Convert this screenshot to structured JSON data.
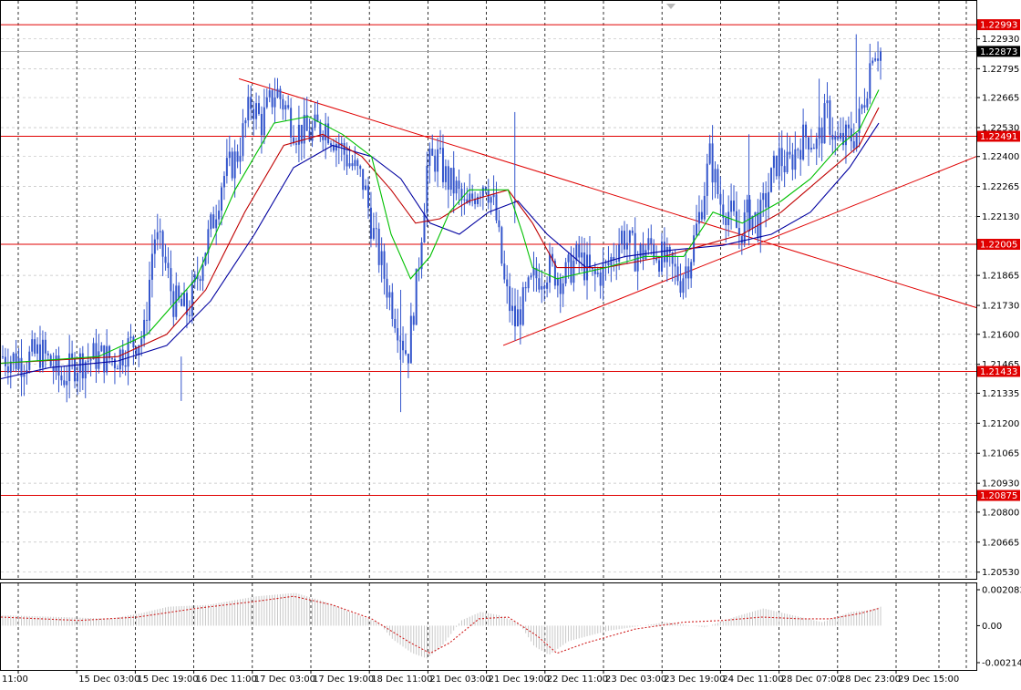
{
  "chart_data": [
    {
      "type": "candlestick",
      "symbol_hint": "",
      "title": "",
      "ylim": [
        1.205,
        1.231
      ],
      "y_ticks": [
        "1.22930",
        "1.22795",
        "1.22665",
        "1.22530",
        "1.22400",
        "1.22265",
        "1.22130",
        "1.21865",
        "1.21730",
        "1.21600",
        "1.21465",
        "1.21335",
        "1.21200",
        "1.21065",
        "1.20930",
        "1.20800",
        "1.20665",
        "1.20530"
      ],
      "x_ticks": [
        "11:00",
        "15 Dec 03:00",
        "15 Dec 19:00",
        "16 Dec 11:00",
        "17 Dec 03:00",
        "17 Dec 19:00",
        "18 Dec 11:00",
        "21 Dec 03:00",
        "21 Dec 19:00",
        "22 Dec 11:00",
        "23 Dec 03:00",
        "23 Dec 19:00",
        "24 Dec 11:00",
        "28 Dec 07:00",
        "28 Dec 23:00",
        "29 Dec 15:00"
      ],
      "horizontal_levels": [
        {
          "label": "1.22993",
          "value": 1.22993
        },
        {
          "label": "1.22491",
          "value": 1.22491
        },
        {
          "label": "1.22005",
          "value": 1.22005
        },
        {
          "label": "1.21433",
          "value": 1.21433
        },
        {
          "label": "1.20875",
          "value": 1.20875
        }
      ],
      "current_price": {
        "label": "1.22873",
        "value": 1.22873
      },
      "trendlines": [
        {
          "from": [
            0.244,
            1.2275
          ],
          "to": [
            1.0,
            1.2172
          ]
        },
        {
          "from": [
            0.515,
            1.2155
          ],
          "to": [
            1.0,
            1.224
          ]
        }
      ],
      "close_path": [
        [
          0.0,
          1.215
        ],
        [
          0.02,
          1.2148
        ],
        [
          0.04,
          1.2152
        ],
        [
          0.06,
          1.214
        ],
        [
          0.075,
          1.2147
        ],
        [
          0.095,
          1.215
        ],
        [
          0.115,
          1.2149
        ],
        [
          0.13,
          1.2155
        ],
        [
          0.145,
          1.216
        ],
        [
          0.155,
          1.2205
        ],
        [
          0.165,
          1.2195
        ],
        [
          0.175,
          1.2175
        ],
        [
          0.19,
          1.217
        ],
        [
          0.205,
          1.2195
        ],
        [
          0.215,
          1.221
        ],
        [
          0.225,
          1.223
        ],
        [
          0.24,
          1.224
        ],
        [
          0.255,
          1.2265
        ],
        [
          0.265,
          1.2255
        ],
        [
          0.28,
          1.227
        ],
        [
          0.29,
          1.2262
        ],
        [
          0.3,
          1.2252
        ],
        [
          0.315,
          1.225
        ],
        [
          0.33,
          1.2255
        ],
        [
          0.345,
          1.2245
        ],
        [
          0.355,
          1.2238
        ],
        [
          0.37,
          1.2228
        ],
        [
          0.38,
          1.2205
        ],
        [
          0.395,
          1.218
        ],
        [
          0.405,
          1.2165
        ],
        [
          0.415,
          1.215
        ],
        [
          0.425,
          1.2185
        ],
        [
          0.435,
          1.2235
        ],
        [
          0.445,
          1.224
        ],
        [
          0.455,
          1.223
        ],
        [
          0.465,
          1.2225
        ],
        [
          0.475,
          1.2215
        ],
        [
          0.485,
          1.2225
        ],
        [
          0.495,
          1.223
        ],
        [
          0.505,
          1.2215
        ],
        [
          0.515,
          1.218
        ],
        [
          0.525,
          1.2165
        ],
        [
          0.535,
          1.2175
        ],
        [
          0.545,
          1.2185
        ],
        [
          0.56,
          1.219
        ],
        [
          0.575,
          1.2185
        ],
        [
          0.59,
          1.2195
        ],
        [
          0.605,
          1.2185
        ],
        [
          0.62,
          1.219
        ],
        [
          0.635,
          1.2205
        ],
        [
          0.65,
          1.2195
        ],
        [
          0.665,
          1.22
        ],
        [
          0.68,
          1.2192
        ],
        [
          0.695,
          1.2185
        ],
        [
          0.705,
          1.2195
        ],
        [
          0.715,
          1.2215
        ],
        [
          0.725,
          1.224
        ],
        [
          0.735,
          1.222
        ],
        [
          0.745,
          1.2215
        ],
        [
          0.755,
          1.2205
        ],
        [
          0.765,
          1.2215
        ],
        [
          0.775,
          1.221
        ],
        [
          0.785,
          1.2225
        ],
        [
          0.795,
          1.224
        ],
        [
          0.805,
          1.2235
        ],
        [
          0.815,
          1.2245
        ],
        [
          0.825,
          1.225
        ],
        [
          0.835,
          1.2245
        ],
        [
          0.845,
          1.226
        ],
        [
          0.855,
          1.2245
        ],
        [
          0.865,
          1.2248
        ],
        [
          0.875,
          1.225
        ],
        [
          0.885,
          1.227
        ],
        [
          0.892,
          1.229
        ],
        [
          0.9,
          1.2287
        ]
      ],
      "ma_fast_path": [
        [
          0.0,
          1.2147
        ],
        [
          0.1,
          1.215
        ],
        [
          0.15,
          1.216
        ],
        [
          0.2,
          1.2185
        ],
        [
          0.24,
          1.2225
        ],
        [
          0.28,
          1.2255
        ],
        [
          0.315,
          1.2258
        ],
        [
          0.35,
          1.225
        ],
        [
          0.38,
          1.224
        ],
        [
          0.4,
          1.2205
        ],
        [
          0.42,
          1.2185
        ],
        [
          0.44,
          1.2195
        ],
        [
          0.46,
          1.2215
        ],
        [
          0.48,
          1.2225
        ],
        [
          0.5,
          1.2225
        ],
        [
          0.52,
          1.2225
        ],
        [
          0.535,
          1.2205
        ],
        [
          0.545,
          1.219
        ],
        [
          0.57,
          1.2185
        ],
        [
          0.62,
          1.219
        ],
        [
          0.66,
          1.2195
        ],
        [
          0.7,
          1.2195
        ],
        [
          0.73,
          1.2215
        ],
        [
          0.76,
          1.221
        ],
        [
          0.8,
          1.222
        ],
        [
          0.83,
          1.223
        ],
        [
          0.86,
          1.2245
        ],
        [
          0.88,
          1.2252
        ],
        [
          0.9,
          1.227
        ]
      ],
      "ma_mid_path": [
        [
          0.0,
          1.2147
        ],
        [
          0.12,
          1.215
        ],
        [
          0.17,
          1.216
        ],
        [
          0.21,
          1.218
        ],
        [
          0.25,
          1.2215
        ],
        [
          0.29,
          1.2245
        ],
        [
          0.33,
          1.225
        ],
        [
          0.37,
          1.224
        ],
        [
          0.4,
          1.2225
        ],
        [
          0.425,
          1.221
        ],
        [
          0.45,
          1.2212
        ],
        [
          0.48,
          1.222
        ],
        [
          0.52,
          1.2225
        ],
        [
          0.545,
          1.221
        ],
        [
          0.57,
          1.219
        ],
        [
          0.62,
          1.219
        ],
        [
          0.68,
          1.2195
        ],
        [
          0.72,
          1.22
        ],
        [
          0.76,
          1.2205
        ],
        [
          0.8,
          1.2215
        ],
        [
          0.84,
          1.223
        ],
        [
          0.88,
          1.2245
        ],
        [
          0.9,
          1.2262
        ]
      ],
      "ma_slow_path": [
        [
          0.0,
          1.214
        ],
        [
          0.05,
          1.2145
        ],
        [
          0.12,
          1.2148
        ],
        [
          0.17,
          1.2155
        ],
        [
          0.215,
          1.2175
        ],
        [
          0.26,
          1.2205
        ],
        [
          0.3,
          1.2235
        ],
        [
          0.34,
          1.2245
        ],
        [
          0.38,
          1.224
        ],
        [
          0.41,
          1.223
        ],
        [
          0.44,
          1.221
        ],
        [
          0.47,
          1.2205
        ],
        [
          0.5,
          1.2215
        ],
        [
          0.53,
          1.222
        ],
        [
          0.56,
          1.2205
        ],
        [
          0.6,
          1.219
        ],
        [
          0.64,
          1.2195
        ],
        [
          0.69,
          1.2198
        ],
        [
          0.74,
          1.22
        ],
        [
          0.79,
          1.2205
        ],
        [
          0.83,
          1.2215
        ],
        [
          0.87,
          1.2235
        ],
        [
          0.9,
          1.2255
        ]
      ],
      "colors": {
        "candles": "#3355cc",
        "ma_fast": "#00c000",
        "ma_mid": "#c00000",
        "ma_slow": "#0000a0",
        "levels": "#e00000",
        "trend": "#e00000",
        "grid": "#c0c0c0"
      }
    },
    {
      "type": "histogram",
      "title": "",
      "y_ticks": [
        "0.002083",
        "0.00",
        "-0.002144"
      ],
      "ylim": [
        -0.002144,
        0.002083
      ],
      "bars_path": [
        [
          0.0,
          0.0006
        ],
        [
          0.06,
          0.0005
        ],
        [
          0.11,
          0.0004
        ],
        [
          0.14,
          0.0007
        ],
        [
          0.17,
          0.0011
        ],
        [
          0.21,
          0.0012
        ],
        [
          0.26,
          0.0017
        ],
        [
          0.3,
          0.0019
        ],
        [
          0.33,
          0.0014
        ],
        [
          0.36,
          0.0007
        ],
        [
          0.385,
          0.0002
        ],
        [
          0.4,
          -0.0008
        ],
        [
          0.42,
          -0.0016
        ],
        [
          0.435,
          -0.0019
        ],
        [
          0.45,
          -0.0012
        ],
        [
          0.47,
          0.0003
        ],
        [
          0.49,
          0.0008
        ],
        [
          0.51,
          0.0006
        ],
        [
          0.53,
          0.0001
        ],
        [
          0.545,
          -0.0012
        ],
        [
          0.56,
          -0.0017
        ],
        [
          0.58,
          -0.0009
        ],
        [
          0.62,
          -0.0003
        ],
        [
          0.68,
          0.0002
        ],
        [
          0.72,
          -0.0001
        ],
        [
          0.75,
          0.0005
        ],
        [
          0.78,
          0.001
        ],
        [
          0.81,
          0.0006
        ],
        [
          0.84,
          0.0002
        ],
        [
          0.87,
          0.0008
        ],
        [
          0.89,
          0.0009
        ],
        [
          0.9,
          0.0011
        ]
      ],
      "signal_path": [
        [
          0.0,
          0.0005
        ],
        [
          0.08,
          0.0003
        ],
        [
          0.14,
          0.0005
        ],
        [
          0.2,
          0.001
        ],
        [
          0.26,
          0.0014
        ],
        [
          0.3,
          0.0017
        ],
        [
          0.34,
          0.0012
        ],
        [
          0.38,
          0.0004
        ],
        [
          0.42,
          -0.001
        ],
        [
          0.44,
          -0.0016
        ],
        [
          0.46,
          -0.001
        ],
        [
          0.49,
          0.0004
        ],
        [
          0.52,
          0.0005
        ],
        [
          0.55,
          -0.0006
        ],
        [
          0.57,
          -0.0016
        ],
        [
          0.6,
          -0.001
        ],
        [
          0.65,
          -0.0002
        ],
        [
          0.7,
          0.0002
        ],
        [
          0.74,
          0.0003
        ],
        [
          0.78,
          0.0005
        ],
        [
          0.82,
          0.0004
        ],
        [
          0.85,
          0.0004
        ],
        [
          0.88,
          0.0007
        ],
        [
          0.9,
          0.001
        ]
      ],
      "colors": {
        "bars": "#c8c8c8",
        "signal": "#d02020"
      }
    }
  ]
}
